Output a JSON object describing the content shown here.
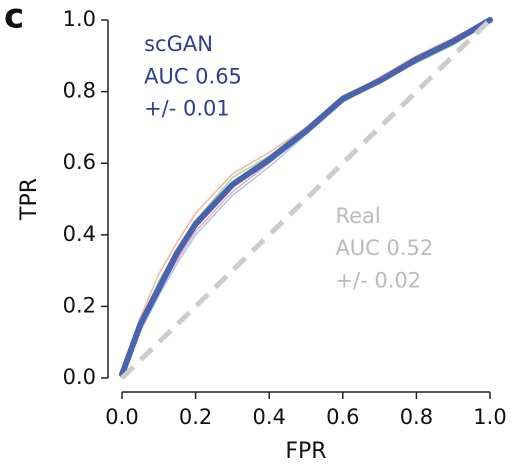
{
  "chart_data": {
    "type": "line",
    "panel_label": "c",
    "xlabel": "FPR",
    "ylabel": "TPR",
    "xlim": [
      0,
      1
    ],
    "ylim": [
      0,
      1
    ],
    "xticks": [
      {
        "value": 0,
        "label": "0.0"
      },
      0.2,
      0.4,
      0.6,
      0.8,
      {
        "value": 1,
        "label": "1.0"
      }
    ],
    "yticks": [
      {
        "value": 0,
        "label": "0.0"
      },
      0.2,
      0.4,
      0.6,
      0.8,
      {
        "value": 1,
        "label": "1.0"
      }
    ],
    "series": [
      {
        "color": "#f4b8a0",
        "width": 1.5,
        "x": [
          0,
          0.05,
          0.1,
          0.15,
          0.2,
          0.3,
          0.4,
          0.5,
          0.6,
          0.7,
          0.8,
          0.9,
          1
        ],
        "values": [
          0.01,
          0.17,
          0.29,
          0.38,
          0.46,
          0.57,
          0.63,
          0.7,
          0.78,
          0.84,
          0.9,
          0.95,
          1
        ]
      },
      {
        "color": "#a8d8a8",
        "width": 1.5,
        "x": [
          0,
          0.05,
          0.1,
          0.15,
          0.2,
          0.3,
          0.4,
          0.5,
          0.6,
          0.7,
          0.8,
          0.9,
          1
        ],
        "values": [
          0.01,
          0.16,
          0.27,
          0.36,
          0.44,
          0.56,
          0.62,
          0.7,
          0.77,
          0.83,
          0.88,
          0.93,
          1
        ]
      },
      {
        "color": "#f2a8c0",
        "width": 1.5,
        "x": [
          0,
          0.05,
          0.1,
          0.15,
          0.2,
          0.3,
          0.4,
          0.5,
          0.6,
          0.7,
          0.8,
          0.9,
          1
        ],
        "values": [
          0.01,
          0.14,
          0.24,
          0.33,
          0.41,
          0.52,
          0.6,
          0.69,
          0.78,
          0.84,
          0.89,
          0.95,
          1
        ]
      },
      {
        "color": "#a8c8ec",
        "width": 1.5,
        "x": [
          0,
          0.05,
          0.1,
          0.15,
          0.2,
          0.3,
          0.4,
          0.5,
          0.6,
          0.7,
          0.8,
          0.9,
          1
        ],
        "values": [
          0.01,
          0.13,
          0.23,
          0.32,
          0.4,
          0.51,
          0.59,
          0.68,
          0.77,
          0.83,
          0.89,
          0.94,
          1
        ]
      },
      {
        "color": "#4a63ad",
        "width": 6,
        "x": [
          0,
          0.05,
          0.1,
          0.15,
          0.2,
          0.3,
          0.4,
          0.5,
          0.6,
          0.7,
          0.8,
          0.9,
          1
        ],
        "values": [
          0.01,
          0.15,
          0.25,
          0.35,
          0.43,
          0.54,
          0.61,
          0.69,
          0.78,
          0.83,
          0.89,
          0.94,
          1
        ]
      },
      {
        "color": "#cccccc",
        "width": 5,
        "dashed": true,
        "x": [
          0,
          1
        ],
        "values": [
          0,
          1
        ]
      }
    ],
    "annotations": [
      {
        "text": "scGAN",
        "color": "#2e3f8f",
        "x": 0.06,
        "y": 0.93
      },
      {
        "text": "AUC 0.65",
        "color": "#2e3f8f",
        "x": 0.06,
        "y": 0.84
      },
      {
        "text": "+/- 0.01",
        "color": "#2e3f8f",
        "x": 0.06,
        "y": 0.75
      },
      {
        "text": "Real",
        "color": "#bbbbbb",
        "x": 0.58,
        "y": 0.45
      },
      {
        "text": "AUC 0.52",
        "color": "#bbbbbb",
        "x": 0.58,
        "y": 0.36
      },
      {
        "text": "+/- 0.02",
        "color": "#bbbbbb",
        "x": 0.58,
        "y": 0.27
      }
    ]
  }
}
